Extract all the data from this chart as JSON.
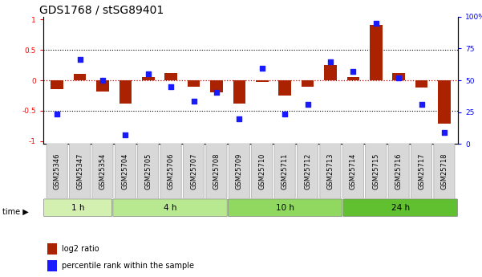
{
  "title": "GDS1768 / stSG89401",
  "samples": [
    "GSM25346",
    "GSM25347",
    "GSM25354",
    "GSM25704",
    "GSM25705",
    "GSM25706",
    "GSM25707",
    "GSM25708",
    "GSM25709",
    "GSM25710",
    "GSM25711",
    "GSM25712",
    "GSM25713",
    "GSM25714",
    "GSM25715",
    "GSM25716",
    "GSM25717",
    "GSM25718"
  ],
  "log2_ratio": [
    -0.15,
    0.1,
    -0.18,
    -0.38,
    0.05,
    0.12,
    -0.1,
    -0.2,
    -0.38,
    -0.02,
    -0.25,
    -0.1,
    0.25,
    0.05,
    0.92,
    0.12,
    -0.12,
    -0.72
  ],
  "percentile_rank": [
    22,
    67,
    50,
    5,
    55,
    45,
    33,
    40,
    18,
    60,
    22,
    30,
    65,
    57,
    97,
    52,
    30,
    7
  ],
  "time_groups": [
    {
      "label": "1 h",
      "start": 0,
      "end": 3,
      "color": "#d4f0b0"
    },
    {
      "label": "4 h",
      "start": 3,
      "end": 8,
      "color": "#b8e890"
    },
    {
      "label": "10 h",
      "start": 8,
      "end": 13,
      "color": "#90d860"
    },
    {
      "label": "24 h",
      "start": 13,
      "end": 18,
      "color": "#60c030"
    }
  ],
  "bar_color": "#aa2200",
  "dot_color": "#1a1aff",
  "background_color": "#ffffff",
  "ylim_left": [
    -1.05,
    1.05
  ],
  "ylim_right": [
    0,
    100
  ],
  "yticks_left": [
    -1,
    -0.5,
    0,
    0.5,
    1
  ],
  "yticks_right": [
    0,
    25,
    50,
    75,
    100
  ],
  "title_fontsize": 10,
  "tick_fontsize": 6.5,
  "label_fontsize": 8,
  "sample_box_color": "#d8d8d8",
  "sample_box_edge": "#aaaaaa"
}
